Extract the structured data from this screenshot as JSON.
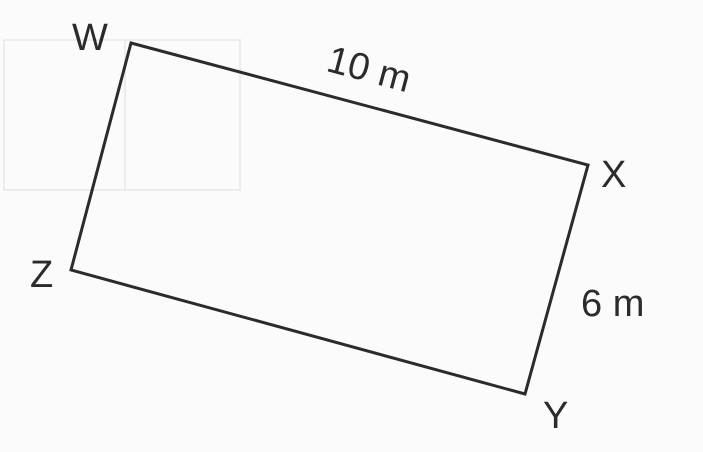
{
  "figure": {
    "vertices": {
      "W": "W",
      "X": "X",
      "Y": "Y",
      "Z": "Z"
    },
    "sides": {
      "WX": "10 m",
      "XY": "6 m"
    }
  }
}
